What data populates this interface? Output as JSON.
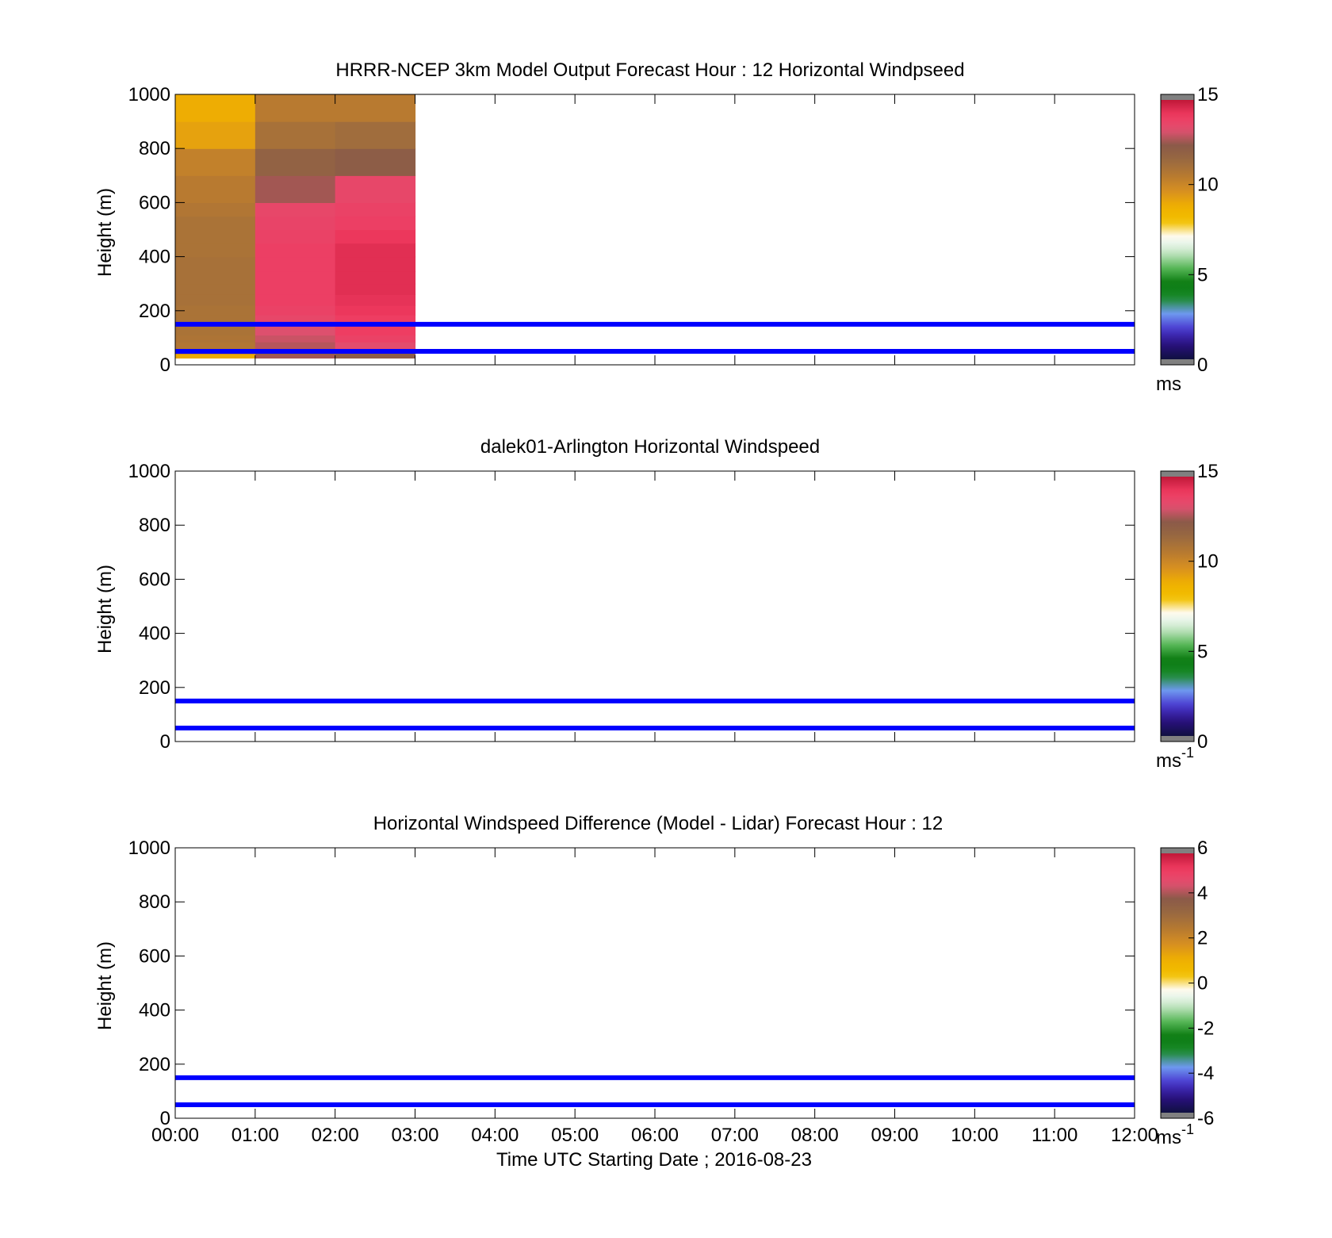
{
  "figure": {
    "xlabel": "Time UTC  Starting Date ; 2016-08-23",
    "x_tick_labels": [
      "00:00",
      "01:00",
      "02:00",
      "03:00",
      "04:00",
      "05:00",
      "06:00",
      "07:00",
      "08:00",
      "09:00",
      "10:00",
      "11:00",
      "12:00"
    ]
  },
  "colormap": [
    "#101040",
    "#2a1080",
    "#4a3ad0",
    "#6f9af0",
    "#1a8a2a",
    "#0a7a10",
    "#59b859",
    "#c6e6c6",
    "#ffffff",
    "#f2c000",
    "#f0b000",
    "#d89020",
    "#b87a30",
    "#9a6a40",
    "#8a5a48",
    "#e05070",
    "#f03a60",
    "#c01838"
  ],
  "chart_data": [
    {
      "type": "heatmap",
      "title": "HRRR-NCEP 3km Model Output   Forecast Hour : 12 Horizontal Windpseed",
      "ylabel": "Height (m)",
      "xlim": [
        0,
        12
      ],
      "ylim": [
        0,
        1000
      ],
      "y_ticks": [
        0,
        200,
        400,
        600,
        800,
        1000
      ],
      "colorbar": {
        "ticks": [
          0,
          5,
          10,
          15
        ],
        "range": [
          0,
          15
        ],
        "unit_label": "ms",
        "unit_sup": ""
      },
      "cells": {
        "x_edges": [
          0,
          1,
          2,
          3
        ],
        "y_edges": [
          25,
          40,
          60,
          85,
          110,
          145,
          185,
          220,
          260,
          300,
          345,
          400,
          450,
          500,
          550,
          600,
          700,
          800,
          900,
          1000
        ],
        "values": [
          [
            9.0,
            12.6,
            12.2
          ],
          [
            10.2,
            12.2,
            12.3
          ],
          [
            10.8,
            12.8,
            13.4
          ],
          [
            10.9,
            13.0,
            13.8
          ],
          [
            11.0,
            13.2,
            14.0
          ],
          [
            11.0,
            13.6,
            14.0
          ],
          [
            11.0,
            13.8,
            14.2
          ],
          [
            11.1,
            13.9,
            14.3
          ],
          [
            11.1,
            13.9,
            14.4
          ],
          [
            11.1,
            13.9,
            14.4
          ],
          [
            11.1,
            13.9,
            14.4
          ],
          [
            11.0,
            13.9,
            14.4
          ],
          [
            11.0,
            13.8,
            14.2
          ],
          [
            11.0,
            13.7,
            13.9
          ],
          [
            10.8,
            13.6,
            13.8
          ],
          [
            10.6,
            12.6,
            13.6
          ],
          [
            10.3,
            11.9,
            12.2
          ],
          [
            9.2,
            11.1,
            11.3
          ],
          [
            8.9,
            10.6,
            10.6
          ]
        ]
      },
      "reference_lines": [
        50,
        150
      ]
    },
    {
      "type": "heatmap",
      "title": "dalek01-Arlington  Horizontal Windspeed",
      "ylabel": "Height (m)",
      "xlim": [
        0,
        12
      ],
      "ylim": [
        0,
        1000
      ],
      "y_ticks": [
        0,
        200,
        400,
        600,
        800,
        1000
      ],
      "colorbar": {
        "ticks": [
          0,
          5,
          10,
          15
        ],
        "range": [
          0,
          15
        ],
        "unit_label": "ms",
        "unit_sup": "-1"
      },
      "cells": null,
      "reference_lines": [
        50,
        150
      ]
    },
    {
      "type": "heatmap",
      "title": "Horizontal Windspeed Difference (Model - Lidar) Forecast Hour : 12",
      "ylabel": "Height (m)",
      "xlim": [
        0,
        12
      ],
      "ylim": [
        0,
        1000
      ],
      "y_ticks": [
        0,
        200,
        400,
        600,
        800,
        1000
      ],
      "colorbar": {
        "ticks": [
          -6,
          -4,
          -2,
          0,
          2,
          4,
          6
        ],
        "range": [
          -6,
          6
        ],
        "unit_label": "ms",
        "unit_sup": "-1"
      },
      "cells": null,
      "reference_lines": [
        50,
        150
      ]
    }
  ]
}
